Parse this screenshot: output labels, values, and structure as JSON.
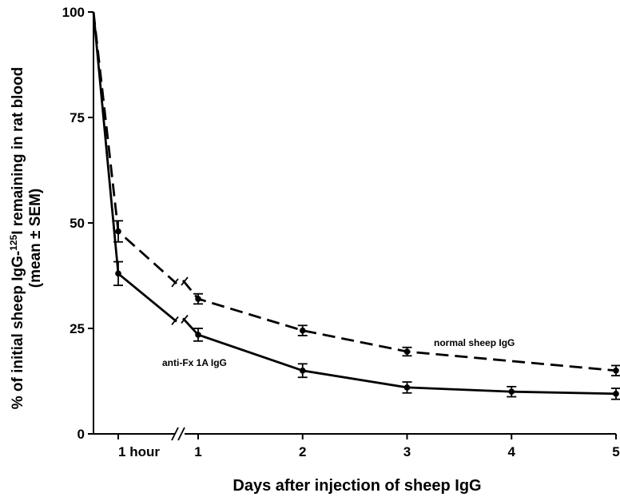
{
  "chart_data": {
    "type": "line",
    "title": "",
    "xlabel": "Days after injection of sheep IgG",
    "ylabel_line1": "% of initial sheep IgG-",
    "ylabel_superscript": "125",
    "ylabel_line1_end": "I remaining in rat blood",
    "ylabel_line2": "(mean ± SEM)",
    "ylim": [
      0,
      100
    ],
    "y_ticks": [
      0,
      25,
      50,
      75,
      100
    ],
    "x_ticks": [
      {
        "value": 0.04167,
        "label": "1 hour"
      },
      {
        "value": 1,
        "label": "1"
      },
      {
        "value": 2,
        "label": "2"
      },
      {
        "value": 3,
        "label": "3"
      },
      {
        "value": 4,
        "label": "4"
      },
      {
        "value": 5,
        "label": "5"
      }
    ],
    "x_unit": "days",
    "axis_break": "between 1 hour and day 1",
    "grid": false,
    "series": [
      {
        "name": "normal sheep IgG",
        "line_style": "dashed",
        "x": [
          0,
          0.04167,
          1,
          2,
          3,
          4,
          5
        ],
        "y": [
          100,
          48,
          32,
          24.5,
          19.5,
          null,
          15
        ],
        "sem": [
          0,
          2.5,
          1.2,
          1.2,
          1.0,
          null,
          1.2
        ],
        "break_y": 36
      },
      {
        "name": "anti-Fx 1A IgG",
        "line_style": "solid",
        "x": [
          0,
          0.04167,
          1,
          2,
          3,
          4,
          5
        ],
        "y": [
          100,
          38,
          23.5,
          15,
          11,
          10,
          9.5
        ],
        "sem": [
          0,
          2.8,
          1.5,
          1.6,
          1.3,
          1.2,
          1.3
        ],
        "break_y": 27
      }
    ]
  }
}
